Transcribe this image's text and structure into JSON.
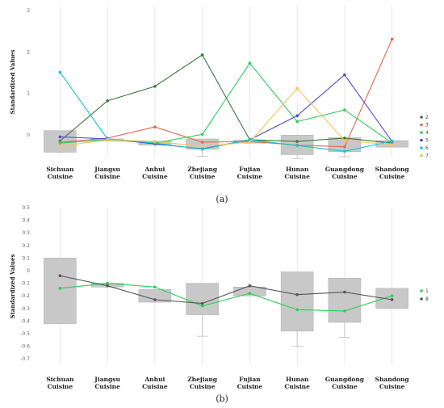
{
  "chart_data": [
    {
      "type": "line",
      "panel_label": "(a)",
      "ylabel": "Standardized Values",
      "categories": [
        [
          "Sichuan",
          "Cuisine"
        ],
        [
          "Jiangsu",
          "Cuisine"
        ],
        [
          "Anhui",
          "Cuisine"
        ],
        [
          "Zhejiang",
          "Cuisine"
        ],
        [
          "Fujian",
          "Cuisine"
        ],
        [
          "Hunan",
          "Cuisine"
        ],
        [
          "Guangdong",
          "Cuisine"
        ],
        [
          "Shandong",
          "Cuisine"
        ]
      ],
      "ylim": [
        -0.55,
        3.1
      ],
      "yticks": [
        0,
        1,
        2,
        3
      ],
      "grid": true,
      "legend_position": "right",
      "boxes": [
        {
          "low": -0.42,
          "high": 0.1,
          "whisker_low": -0.42,
          "whisker_high": 0.1
        },
        {
          "low": -0.15,
          "high": -0.1,
          "whisker_low": -0.15,
          "whisker_high": -0.1
        },
        {
          "low": -0.25,
          "high": -0.15,
          "whisker_low": -0.25,
          "whisker_high": -0.15
        },
        {
          "low": -0.35,
          "high": -0.1,
          "whisker_low": -0.52,
          "whisker_high": -0.1
        },
        {
          "low": -0.2,
          "high": -0.13,
          "whisker_low": -0.2,
          "whisker_high": -0.13
        },
        {
          "low": -0.48,
          "high": -0.01,
          "whisker_low": -0.58,
          "whisker_high": -0.01
        },
        {
          "low": -0.41,
          "high": -0.07,
          "whisker_low": -0.53,
          "whisker_high": -0.07
        },
        {
          "low": -0.3,
          "high": -0.14,
          "whisker_low": -0.3,
          "whisker_high": -0.14
        }
      ],
      "series": [
        {
          "name": "2",
          "color": "#3c763d",
          "values": [
            -0.15,
            0.82,
            1.17,
            1.93,
            -0.12,
            -0.16,
            -0.08,
            -0.2
          ]
        },
        {
          "name": "3",
          "color": "#e2684a",
          "values": [
            -0.18,
            -0.08,
            0.19,
            -0.18,
            -0.16,
            -0.25,
            -0.29,
            2.31
          ]
        },
        {
          "name": "4",
          "color": "#2ecc5a",
          "values": [
            -0.2,
            -0.12,
            -0.2,
            0.01,
            1.73,
            0.32,
            0.6,
            -0.2
          ]
        },
        {
          "name": "5",
          "color": "#4b4bd0",
          "values": [
            -0.05,
            -0.1,
            -0.22,
            -0.34,
            -0.12,
            0.46,
            1.45,
            -0.16
          ]
        },
        {
          "name": "6",
          "color": "#13c4cf",
          "values": [
            1.51,
            -0.1,
            -0.2,
            -0.35,
            -0.12,
            -0.26,
            -0.4,
            -0.15
          ]
        },
        {
          "name": "7",
          "color": "#f7c35a",
          "values": [
            -0.28,
            -0.12,
            -0.16,
            -0.28,
            -0.18,
            1.12,
            -0.14,
            -0.24
          ]
        }
      ]
    },
    {
      "type": "line",
      "panel_label": "(b)",
      "ylabel": "Standardized Values",
      "categories": [
        [
          "Sichuan",
          "Cuisine"
        ],
        [
          "Jiangsu",
          "Cuisine"
        ],
        [
          "Anhui",
          "Cuisine"
        ],
        [
          "Zhejiang",
          "Cuisine"
        ],
        [
          "Fujian",
          "Cuisine"
        ],
        [
          "Hunan",
          "Cuisine"
        ],
        [
          "Guangdong",
          "Cuisine"
        ],
        [
          "Shandong",
          "Cuisine"
        ]
      ],
      "ylim": [
        -0.75,
        0.5
      ],
      "yticks": [
        0.5,
        0.4,
        0.3,
        0.2,
        0.1,
        0,
        -0.1,
        -0.2,
        -0.3,
        -0.4,
        -0.5,
        -0.6,
        -0.7
      ],
      "grid": true,
      "legend_position": "right",
      "boxes": [
        {
          "low": -0.42,
          "high": 0.1,
          "whisker_low": -0.42,
          "whisker_high": 0.1
        },
        {
          "low": -0.13,
          "high": -0.1,
          "whisker_low": -0.13,
          "whisker_high": -0.1
        },
        {
          "low": -0.25,
          "high": -0.15,
          "whisker_low": -0.25,
          "whisker_high": -0.15
        },
        {
          "low": -0.35,
          "high": -0.1,
          "whisker_low": -0.52,
          "whisker_high": -0.1
        },
        {
          "low": -0.2,
          "high": -0.13,
          "whisker_low": -0.2,
          "whisker_high": -0.13
        },
        {
          "low": -0.48,
          "high": -0.01,
          "whisker_low": -0.6,
          "whisker_high": -0.01
        },
        {
          "low": -0.41,
          "high": -0.06,
          "whisker_low": -0.53,
          "whisker_high": -0.06
        },
        {
          "low": -0.3,
          "high": -0.14,
          "whisker_low": -0.3,
          "whisker_high": -0.14
        }
      ],
      "series": [
        {
          "name": "1",
          "color": "#2ecc5a",
          "values": [
            -0.14,
            -0.1,
            -0.13,
            -0.28,
            -0.18,
            -0.31,
            -0.32,
            -0.2
          ]
        },
        {
          "name": "8",
          "color": "#555555",
          "values": [
            -0.04,
            -0.12,
            -0.23,
            -0.26,
            -0.12,
            -0.19,
            -0.17,
            -0.23
          ]
        }
      ]
    }
  ]
}
